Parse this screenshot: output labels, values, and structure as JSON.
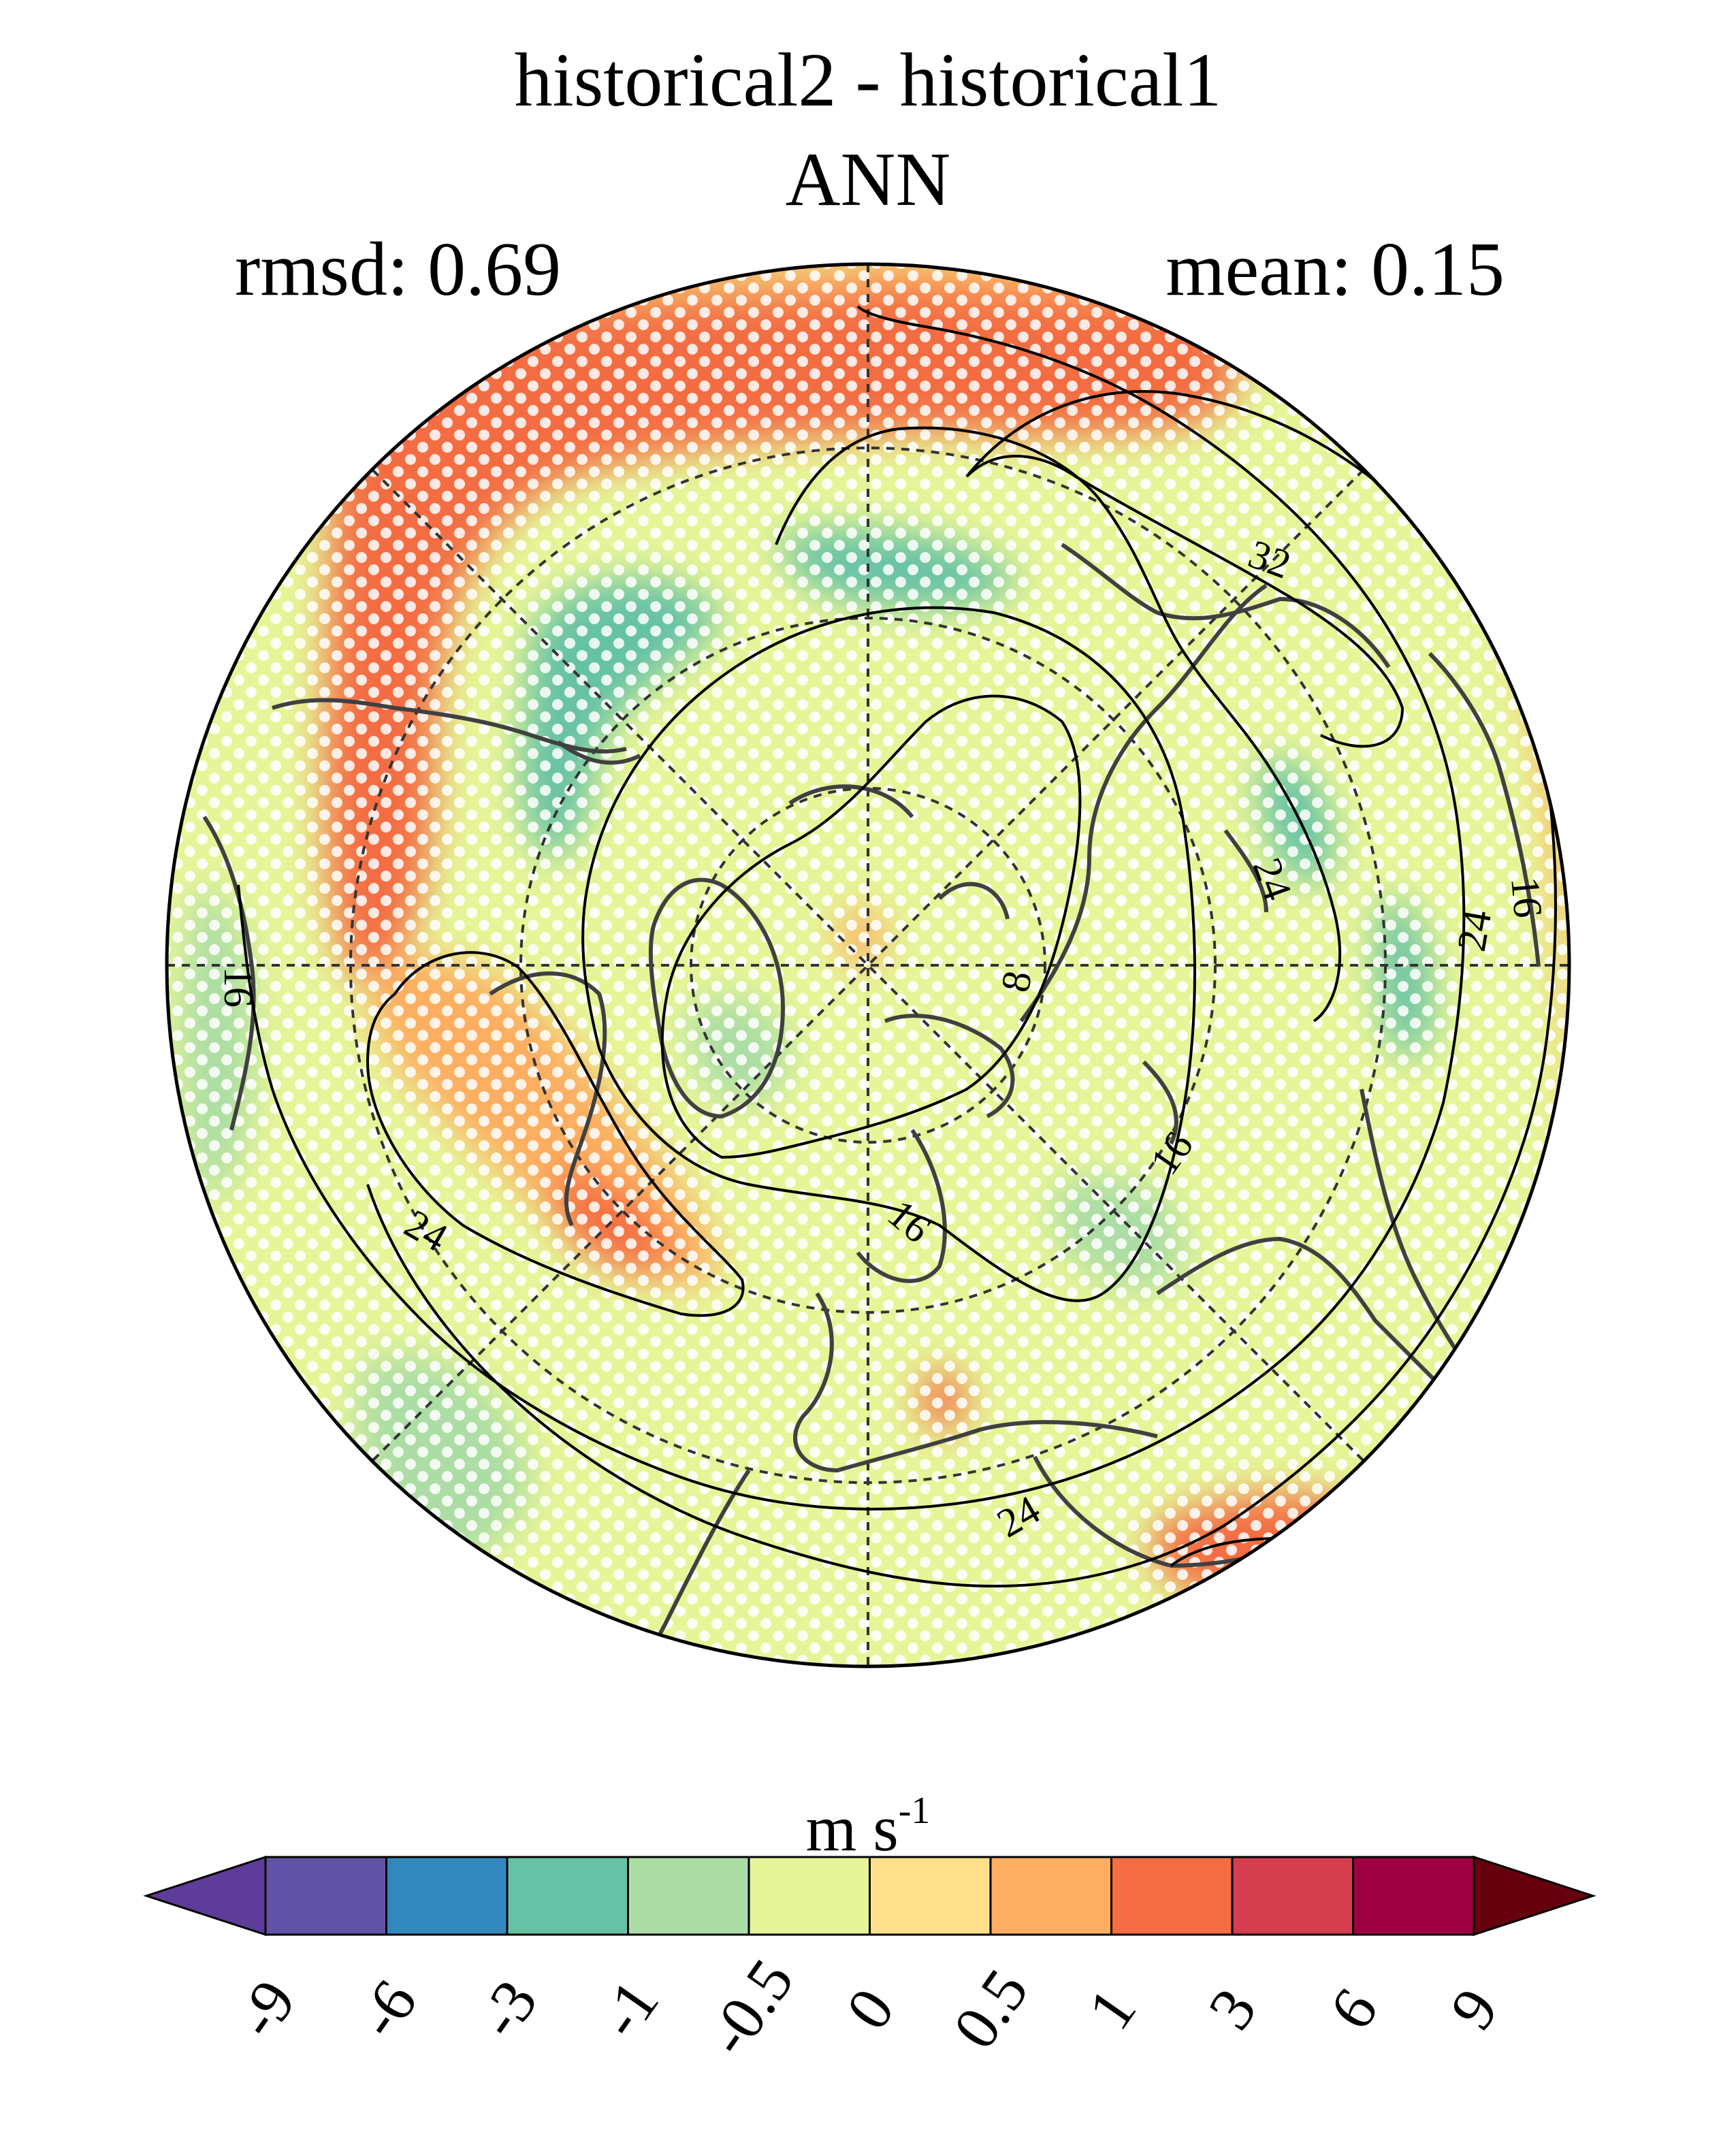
{
  "title": "historical2 - historical1",
  "season": "ANN",
  "stats": {
    "rmsd_label": "rmsd: 0.69",
    "mean_label": "mean: 0.15"
  },
  "colorbar": {
    "units_main": "m s",
    "units_exp": "-1",
    "levels": [
      "-9",
      "-6",
      "-3",
      "-1",
      "-0.5",
      "0",
      "0.5",
      "1",
      "3",
      "6",
      "9"
    ],
    "colors": [
      "#5e3c99",
      "#6154a6",
      "#3288bd",
      "#66c2a5",
      "#abdda4",
      "#e6f598",
      "#fee08b",
      "#fdae61",
      "#f46d43",
      "#d53e4f",
      "#9e0142",
      "#67000d"
    ]
  },
  "contour_labels": [
    "32",
    "24",
    "16",
    "8",
    "24",
    "16",
    "24",
    "16",
    "24",
    "16"
  ],
  "map": {
    "projection": "north-polar-stereographic",
    "background_color": "#e6f598",
    "stippling": "white dots (significance)"
  }
}
